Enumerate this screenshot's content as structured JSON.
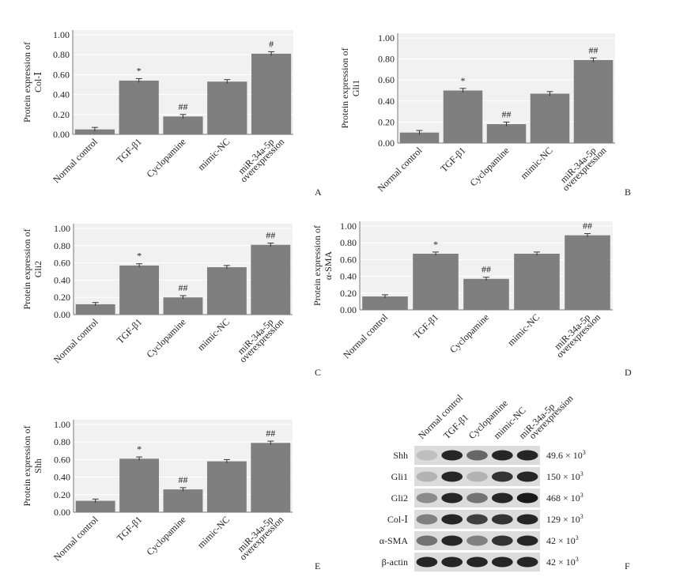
{
  "categories": [
    "Normal control",
    "TGF-β1",
    "Cyclopamine",
    "mimic-NC",
    "miR-34a-5p overexpression"
  ],
  "colors": {
    "bar": "#7f7f7f",
    "panel": "#f1f1f1",
    "grid": "#ffffff",
    "axis": "#777777",
    "text": "#222222"
  },
  "chart_data": [
    {
      "panel": "A",
      "type": "bar",
      "ylabel": [
        "Protein expression of",
        "Col-Ⅰ"
      ],
      "yticks": [
        "0.00",
        "0.20",
        "0.40",
        "0.60",
        "0.80",
        "1.00"
      ],
      "ylim": [
        0,
        1.0
      ],
      "categories": [
        "Normal control",
        "TGF-β1",
        "Cyclopamine",
        "mimic-NC",
        "miR-34a-5p overexpression"
      ],
      "values": [
        0.05,
        0.54,
        0.18,
        0.53,
        0.81
      ],
      "errors": [
        0.02,
        0.02,
        0.02,
        0.02,
        0.02
      ],
      "annotations": [
        "",
        "*",
        "##",
        "",
        "#"
      ]
    },
    {
      "panel": "B",
      "type": "bar",
      "ylabel": [
        "Protein expression of",
        "Gli1"
      ],
      "yticks": [
        "0.00",
        "0.20",
        "0.40",
        "0.60",
        "0.80",
        "1.00"
      ],
      "ylim": [
        0,
        1.0
      ],
      "categories": [
        "Normal control",
        "TGF-β1",
        "Cyclopamine",
        "mimic-NC",
        "miR-34a-5p overexpression"
      ],
      "values": [
        0.1,
        0.5,
        0.18,
        0.47,
        0.79
      ],
      "errors": [
        0.02,
        0.02,
        0.02,
        0.02,
        0.02
      ],
      "annotations": [
        "",
        "*",
        "##",
        "",
        "##"
      ]
    },
    {
      "panel": "C",
      "type": "bar",
      "ylabel": [
        "Protein expression of",
        "Gli2"
      ],
      "yticks": [
        "0.00",
        "0.20",
        "0.40",
        "0.60",
        "0.80",
        "1.00"
      ],
      "ylim": [
        0,
        1.0
      ],
      "categories": [
        "Normal control",
        "TGF-β1",
        "Cyclopamine",
        "mimic-NC",
        "miR-34a-5p overexpression"
      ],
      "values": [
        0.12,
        0.57,
        0.2,
        0.55,
        0.81
      ],
      "errors": [
        0.02,
        0.02,
        0.02,
        0.02,
        0.02
      ],
      "annotations": [
        "",
        "*",
        "##",
        "",
        "##"
      ]
    },
    {
      "panel": "D",
      "type": "bar",
      "ylabel": [
        "Protein expression of",
        "α-SMA"
      ],
      "yticks": [
        "0.00",
        "0.20",
        "0.40",
        "0.60",
        "0.80",
        "1.00"
      ],
      "ylim": [
        0,
        1.0
      ],
      "categories": [
        "Normal control",
        "TGF-β1",
        "Cyclopamine",
        "mimic-NC",
        "miR-34a-5p overexpression"
      ],
      "values": [
        0.16,
        0.67,
        0.37,
        0.67,
        0.89
      ],
      "errors": [
        0.02,
        0.02,
        0.02,
        0.02,
        0.02
      ],
      "annotations": [
        "",
        "*",
        "##",
        "",
        "##"
      ]
    },
    {
      "panel": "E",
      "type": "bar",
      "ylabel": [
        "Protein expression of",
        "Shh"
      ],
      "yticks": [
        "0.00",
        "0.20",
        "0.40",
        "0.60",
        "0.80",
        "1.00"
      ],
      "ylim": [
        0,
        1.0
      ],
      "categories": [
        "Normal control",
        "TGF-β1",
        "Cyclopamine",
        "mimic-NC",
        "miR-34a-5p overexpression"
      ],
      "values": [
        0.13,
        0.61,
        0.26,
        0.58,
        0.79
      ],
      "errors": [
        0.02,
        0.02,
        0.02,
        0.02,
        0.02
      ],
      "annotations": [
        "",
        "*",
        "##",
        "",
        "##"
      ]
    }
  ],
  "blot": {
    "panel": "F",
    "lanes": [
      "Normal control",
      "TGF-β1",
      "Cyclopamine",
      "mimic-NC",
      "miR-34a-5p overexpression"
    ],
    "rows": [
      {
        "protein": "Shh",
        "size": "49.6 × 10",
        "exp": "3",
        "intensity": [
          0.25,
          0.85,
          0.6,
          0.85,
          0.85
        ]
      },
      {
        "protein": "Gli1",
        "size": "150 × 10",
        "exp": "3",
        "intensity": [
          0.3,
          0.85,
          0.3,
          0.8,
          0.85
        ]
      },
      {
        "protein": "Gli2",
        "size": "468 × 10",
        "exp": "3",
        "intensity": [
          0.45,
          0.85,
          0.55,
          0.85,
          0.9
        ]
      },
      {
        "protein": "Col-Ⅰ",
        "size": "129 × 10",
        "exp": "3",
        "intensity": [
          0.5,
          0.85,
          0.75,
          0.8,
          0.85
        ]
      },
      {
        "protein": "α-SMA",
        "size": "42 × 10",
        "exp": "3",
        "intensity": [
          0.55,
          0.85,
          0.5,
          0.8,
          0.85
        ]
      },
      {
        "protein": "β-actin",
        "size": "42 × 10",
        "exp": "3",
        "intensity": [
          0.85,
          0.85,
          0.85,
          0.85,
          0.85
        ]
      }
    ]
  }
}
